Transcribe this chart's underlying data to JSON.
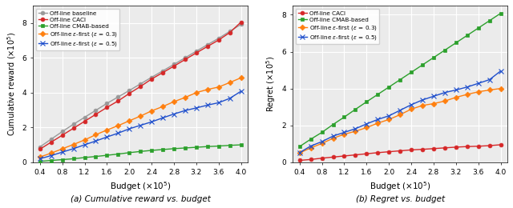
{
  "budget_x": [
    0.4,
    0.6,
    0.8,
    1.0,
    1.2,
    1.4,
    1.6,
    1.8,
    2.0,
    2.2,
    2.4,
    2.6,
    2.8,
    3.0,
    3.2,
    3.4,
    3.6,
    3.8,
    4.0
  ],
  "left_baseline": [
    0.88,
    1.32,
    1.76,
    2.18,
    2.58,
    2.98,
    3.38,
    3.75,
    4.12,
    4.5,
    4.88,
    5.25,
    5.62,
    6.0,
    6.38,
    6.75,
    7.12,
    7.52,
    7.92
  ],
  "left_caci": [
    0.75,
    1.15,
    1.55,
    1.95,
    2.35,
    2.75,
    3.15,
    3.52,
    3.95,
    4.35,
    4.78,
    5.15,
    5.52,
    5.9,
    6.28,
    6.65,
    7.02,
    7.45,
    8.05
  ],
  "left_cmab": [
    0.05,
    0.1,
    0.15,
    0.2,
    0.27,
    0.33,
    0.4,
    0.47,
    0.55,
    0.62,
    0.68,
    0.73,
    0.78,
    0.82,
    0.86,
    0.9,
    0.93,
    0.97,
    1.0
  ],
  "left_eps03": [
    0.3,
    0.52,
    0.77,
    1.02,
    1.28,
    1.58,
    1.85,
    2.1,
    2.38,
    2.65,
    2.95,
    3.2,
    3.48,
    3.72,
    4.0,
    4.18,
    4.32,
    4.58,
    4.85
  ],
  "left_eps05": [
    0.2,
    0.38,
    0.58,
    0.78,
    1.0,
    1.22,
    1.45,
    1.67,
    1.92,
    2.12,
    2.32,
    2.55,
    2.77,
    2.97,
    3.12,
    3.28,
    3.42,
    3.67,
    4.08
  ],
  "right_caci": [
    0.1,
    0.15,
    0.22,
    0.28,
    0.34,
    0.4,
    0.46,
    0.52,
    0.57,
    0.62,
    0.67,
    0.7,
    0.74,
    0.78,
    0.82,
    0.85,
    0.87,
    0.9,
    0.95
  ],
  "right_cmab": [
    0.85,
    1.25,
    1.62,
    2.05,
    2.45,
    2.87,
    3.28,
    3.68,
    4.08,
    4.48,
    4.88,
    5.28,
    5.68,
    6.08,
    6.48,
    6.88,
    7.28,
    7.68,
    8.08
  ],
  "right_eps03": [
    0.5,
    0.78,
    1.02,
    1.3,
    1.52,
    1.68,
    1.88,
    2.12,
    2.32,
    2.58,
    2.88,
    3.08,
    3.18,
    3.32,
    3.52,
    3.68,
    3.82,
    3.92,
    4.0
  ],
  "right_eps05": [
    0.52,
    0.88,
    1.12,
    1.42,
    1.62,
    1.82,
    2.08,
    2.32,
    2.52,
    2.82,
    3.12,
    3.38,
    3.58,
    3.78,
    3.92,
    4.08,
    4.28,
    4.48,
    4.95
  ],
  "color_baseline": "#999999",
  "color_caci": "#d62728",
  "color_cmab": "#2ca02c",
  "color_eps03": "#ff7f0e",
  "color_eps05": "#1f4fcc",
  "left_ylabel": "Cumulative reward ($\\times$10$^5$)",
  "right_ylabel": "Regret ($\\times$10$^5$)",
  "xlabel": "Budget ($\\times$10$^5$)",
  "left_ylim": [
    0,
    9
  ],
  "right_ylim": [
    0,
    8.5
  ],
  "left_yticks": [
    0,
    2,
    4,
    6,
    8
  ],
  "right_yticks": [
    0,
    2,
    4,
    6,
    8
  ],
  "xtick_labels": [
    "0.4",
    "0.8",
    "1.2",
    "1.6",
    "2.0",
    "2.4",
    "2.8",
    "3.2",
    "3.6",
    "4.0"
  ],
  "xticks": [
    0.4,
    0.8,
    1.2,
    1.6,
    2.0,
    2.4,
    2.8,
    3.2,
    3.6,
    4.0
  ],
  "caption_a": "(a) Cumulative reward vs. budget",
  "caption_b": "(b) Regret vs. budget"
}
